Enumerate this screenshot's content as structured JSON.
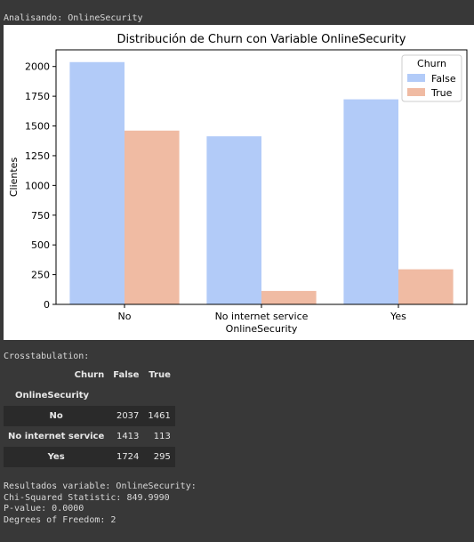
{
  "output": {
    "header_line": "Analisando: OnlineSecurity",
    "crosstab_title": "Crosstabulation:",
    "results": [
      "Resultados variable: OnlineSecurity:",
      "Chi-Squared Statistic: 849.9990",
      "P-value: 0.0000",
      "Degrees of Freedom: 2"
    ]
  },
  "crosstab": {
    "columns_name": "Churn",
    "columns": [
      "False",
      "True"
    ],
    "index_name": "OnlineSecurity",
    "rows": [
      {
        "label": "No",
        "values": [
          "2037",
          "1461"
        ]
      },
      {
        "label": "No internet service",
        "values": [
          "1413",
          "113"
        ]
      },
      {
        "label": "Yes",
        "values": [
          "1724",
          "295"
        ]
      }
    ]
  },
  "chart_data": {
    "type": "bar",
    "title": "Distribución de Churn con Variable OnlineSecurity",
    "xlabel": "OnlineSecurity",
    "ylabel": "Clientes",
    "categories": [
      "No",
      "No internet service",
      "Yes"
    ],
    "series": [
      {
        "name": "False",
        "values": [
          2037,
          1413,
          1724
        ],
        "color": "#b2cbf8"
      },
      {
        "name": "True",
        "values": [
          1461,
          113,
          295
        ],
        "color": "#f0bba3"
      }
    ],
    "ylim": [
      0,
      2140
    ],
    "yticks": [
      0,
      250,
      500,
      750,
      1000,
      1250,
      1500,
      1750,
      2000
    ],
    "legend": {
      "title": "Churn",
      "placement": "top-right"
    },
    "grid": false
  }
}
